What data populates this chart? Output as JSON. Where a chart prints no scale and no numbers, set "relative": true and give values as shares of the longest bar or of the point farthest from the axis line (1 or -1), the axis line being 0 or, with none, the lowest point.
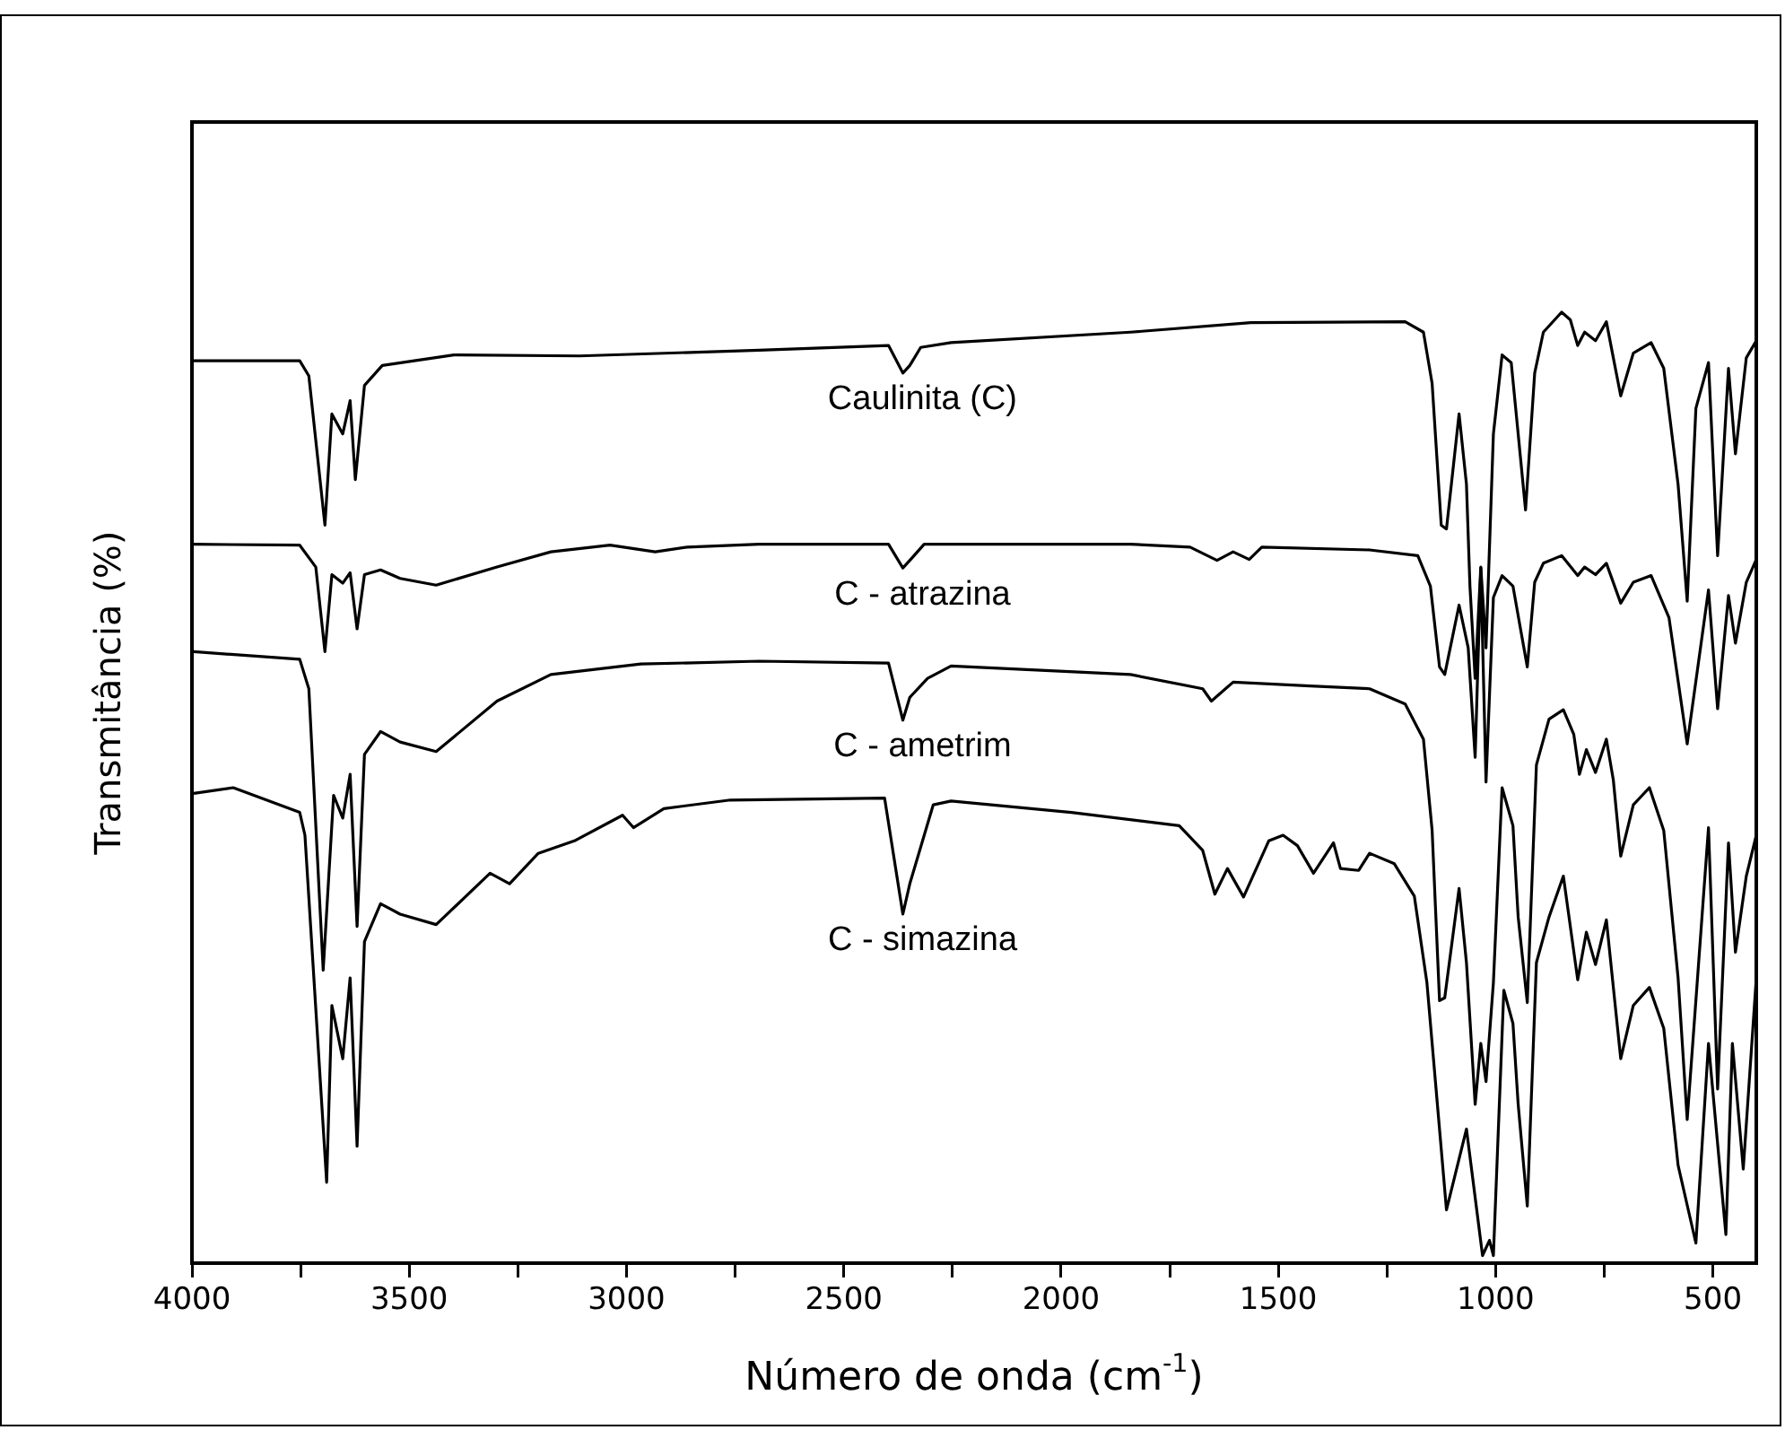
{
  "chart_data": {
    "type": "line",
    "xlabel": "Número de onda (cm$^{-1}$)",
    "ylabel": "Transmitância (%)",
    "relative": true,
    "marker": "none",
    "line_style": "solid",
    "legend": false,
    "grid": false,
    "xlim": [
      4000,
      400
    ],
    "xticks": [
      4000,
      {
        "value": 3750,
        "label": null
      },
      3500,
      {
        "value": 3250,
        "label": null
      },
      3000,
      {
        "value": 2750,
        "label": null
      },
      2500,
      {
        "value": 2250,
        "label": null
      },
      2000,
      {
        "value": 1750,
        "label": null
      },
      1500,
      {
        "value": 1250,
        "label": null
      },
      1000,
      {
        "value": 750,
        "label": null
      },
      500
    ],
    "series": [
      {
        "name": "Caulinita (C)",
        "color": "#000000",
        "x": [
          3996,
          3752,
          3731,
          3694,
          3678,
          3653,
          3636,
          3624,
          3603,
          3562,
          3397,
          3108,
          2695,
          2397,
          2364,
          2348,
          2323,
          2253,
          1840,
          1563,
          1208,
          1166,
          1146,
          1125,
          1113,
          1084,
          1067,
          1059,
          1047,
          1034,
          1022,
          1005,
          985,
          964,
          948,
          931,
          910,
          890,
          848,
          828,
          811,
          795,
          770,
          745,
          729,
          712,
          683,
          642,
          613,
          580,
          559,
          539,
          510,
          489,
          464,
          448,
          423,
          400
        ],
        "values": [
          0.949,
          0.949,
          0.933,
          0.776,
          0.893,
          0.872,
          0.907,
          0.824,
          0.923,
          0.944,
          0.955,
          0.954,
          0.96,
          0.965,
          0.936,
          0.944,
          0.963,
          0.968,
          0.979,
          0.989,
          0.99,
          0.979,
          0.925,
          0.776,
          0.772,
          0.893,
          0.819,
          0.712,
          0.615,
          0.732,
          0.647,
          0.872,
          0.955,
          0.947,
          0.872,
          0.792,
          0.936,
          0.979,
          1.0,
          0.992,
          0.965,
          0.979,
          0.97,
          0.99,
          0.952,
          0.912,
          0.957,
          0.968,
          0.941,
          0.819,
          0.696,
          0.899,
          0.947,
          0.744,
          0.941,
          0.851,
          0.952,
          0.97
        ]
      },
      {
        "name": "C - atrazina",
        "color": "#000000",
        "x": [
          3996,
          3752,
          3715,
          3694,
          3678,
          3653,
          3636,
          3620,
          3603,
          3566,
          3521,
          3438,
          3298,
          3174,
          3038,
          2934,
          2860,
          2695,
          2397,
          2364,
          2348,
          2315,
          2253,
          1840,
          1703,
          1641,
          1604,
          1567,
          1538,
          1290,
          1179,
          1150,
          1129,
          1117,
          1084,
          1063,
          1047,
          1034,
          1022,
          1005,
          985,
          960,
          943,
          927,
          910,
          890,
          848,
          811,
          795,
          770,
          745,
          712,
          683,
          642,
          601,
          559,
          510,
          489,
          464,
          448,
          423,
          400
        ],
        "values": [
          0.756,
          0.755,
          0.732,
          0.643,
          0.724,
          0.715,
          0.726,
          0.667,
          0.724,
          0.729,
          0.72,
          0.713,
          0.732,
          0.748,
          0.755,
          0.748,
          0.753,
          0.756,
          0.756,
          0.731,
          0.739,
          0.756,
          0.756,
          0.756,
          0.753,
          0.739,
          0.748,
          0.74,
          0.753,
          0.75,
          0.744,
          0.712,
          0.627,
          0.619,
          0.692,
          0.647,
          0.532,
          0.731,
          0.506,
          0.7,
          0.723,
          0.712,
          0.668,
          0.627,
          0.716,
          0.736,
          0.744,
          0.723,
          0.732,
          0.724,
          0.736,
          0.694,
          0.716,
          0.723,
          0.679,
          0.546,
          0.708,
          0.583,
          0.702,
          0.652,
          0.716,
          0.74
        ]
      },
      {
        "name": "C - ametrim",
        "color": "#000000",
        "x": [
          3996,
          3752,
          3731,
          3698,
          3674,
          3653,
          3636,
          3620,
          3603,
          3566,
          3521,
          3438,
          3298,
          3174,
          2967,
          2695,
          2397,
          2364,
          2348,
          2307,
          2253,
          1840,
          1674,
          1654,
          1604,
          1427,
          1290,
          1208,
          1166,
          1146,
          1129,
          1117,
          1084,
          1067,
          1047,
          1034,
          1022,
          1005,
          985,
          960,
          948,
          927,
          906,
          877,
          844,
          820,
          807,
          791,
          770,
          745,
          729,
          712,
          683,
          646,
          613,
          580,
          559,
          510,
          489,
          464,
          448,
          423,
          400
        ],
        "values": [
          0.643,
          0.635,
          0.604,
          0.308,
          0.492,
          0.468,
          0.514,
          0.354,
          0.535,
          0.559,
          0.548,
          0.538,
          0.591,
          0.619,
          0.63,
          0.633,
          0.631,
          0.571,
          0.595,
          0.615,
          0.628,
          0.619,
          0.604,
          0.591,
          0.611,
          0.607,
          0.604,
          0.588,
          0.551,
          0.455,
          0.276,
          0.279,
          0.394,
          0.316,
          0.167,
          0.231,
          0.191,
          0.295,
          0.5,
          0.46,
          0.364,
          0.274,
          0.524,
          0.572,
          0.582,
          0.556,
          0.514,
          0.54,
          0.516,
          0.551,
          0.508,
          0.428,
          0.482,
          0.5,
          0.455,
          0.3,
          0.151,
          0.458,
          0.183,
          0.442,
          0.327,
          0.407,
          0.45
        ]
      },
      {
        "name": "C - simazina",
        "color": "#000000",
        "x": [
          3996,
          3905,
          3752,
          3740,
          3690,
          3678,
          3653,
          3636,
          3620,
          3603,
          3566,
          3521,
          3438,
          3314,
          3269,
          3203,
          3120,
          3009,
          2984,
          2914,
          2761,
          2406,
          2364,
          2348,
          2294,
          2253,
          1976,
          1728,
          1674,
          1646,
          1617,
          1580,
          1522,
          1489,
          1456,
          1419,
          1373,
          1357,
          1315,
          1290,
          1233,
          1187,
          1158,
          1113,
          1067,
          1030,
          1014,
          1005,
          981,
          960,
          948,
          927,
          906,
          877,
          844,
          811,
          791,
          770,
          745,
          712,
          683,
          646,
          613,
          580,
          539,
          510,
          470,
          455,
          430,
          400
        ],
        "values": [
          0.494,
          0.5,
          0.474,
          0.45,
          0.085,
          0.271,
          0.215,
          0.3,
          0.123,
          0.338,
          0.378,
          0.367,
          0.356,
          0.41,
          0.399,
          0.431,
          0.444,
          0.471,
          0.458,
          0.478,
          0.487,
          0.489,
          0.367,
          0.399,
          0.482,
          0.486,
          0.474,
          0.46,
          0.434,
          0.388,
          0.415,
          0.385,
          0.444,
          0.45,
          0.439,
          0.41,
          0.442,
          0.415,
          0.413,
          0.431,
          0.42,
          0.386,
          0.295,
          0.056,
          0.141,
          0.008,
          0.024,
          0.008,
          0.287,
          0.252,
          0.167,
          0.06,
          0.316,
          0.364,
          0.407,
          0.298,
          0.348,
          0.314,
          0.361,
          0.215,
          0.271,
          0.29,
          0.247,
          0.103,
          0.021,
          0.231,
          0.03,
          0.231,
          0.099,
          0.3
        ]
      }
    ]
  }
}
